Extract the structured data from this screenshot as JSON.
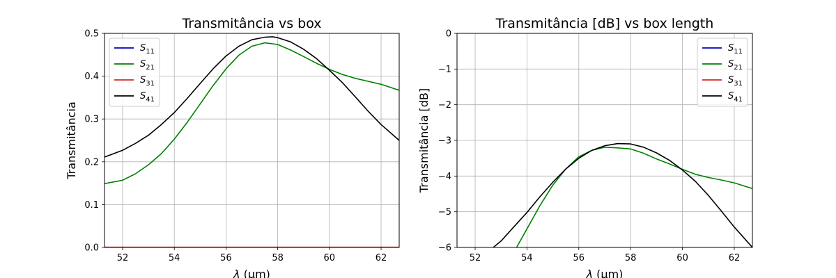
{
  "chart_data": [
    {
      "type": "line",
      "title": "Transmitância vs box",
      "xlabel_prefix": "λ",
      "xlabel_unit": "(μm)",
      "ylabel": "Transmitância",
      "xlim": [
        51.3,
        62.7
      ],
      "ylim": [
        0,
        0.5
      ],
      "xticks": [
        52,
        54,
        56,
        58,
        60,
        62
      ],
      "yticks": [
        0.0,
        0.1,
        0.2,
        0.3,
        0.4,
        0.5
      ],
      "ytick_labels": [
        "0.0",
        "0.1",
        "0.2",
        "0.3",
        "0.4",
        "0.5"
      ],
      "grid": true,
      "legend_position": "top-left",
      "series": [
        {
          "name": "S",
          "sub": "11",
          "color": "#0000bf",
          "x": [
            51.3,
            62.7
          ],
          "y": [
            0.0,
            0.0
          ]
        },
        {
          "name": "S",
          "sub": "21",
          "color": "#008000",
          "x": [
            51.3,
            52.0,
            52.5,
            53.0,
            53.5,
            54.0,
            54.5,
            55.0,
            55.5,
            56.0,
            56.5,
            57.0,
            57.5,
            58.0,
            58.5,
            59.0,
            59.5,
            60.0,
            60.5,
            61.0,
            61.5,
            62.0,
            62.7
          ],
          "y": [
            0.149,
            0.157,
            0.172,
            0.193,
            0.219,
            0.253,
            0.292,
            0.335,
            0.378,
            0.417,
            0.449,
            0.47,
            0.478,
            0.474,
            0.461,
            0.446,
            0.43,
            0.416,
            0.404,
            0.395,
            0.388,
            0.381,
            0.367
          ]
        },
        {
          "name": "S",
          "sub": "31",
          "color": "#d62728",
          "x": [
            51.3,
            62.7
          ],
          "y": [
            0.0005,
            0.0005
          ]
        },
        {
          "name": "S",
          "sub": "41",
          "color": "#000000",
          "x": [
            51.3,
            52.0,
            52.5,
            53.0,
            53.5,
            54.0,
            54.5,
            55.0,
            55.5,
            56.0,
            56.5,
            57.0,
            57.5,
            57.8,
            58.0,
            58.5,
            59.0,
            59.5,
            60.0,
            60.5,
            61.0,
            61.5,
            62.0,
            62.7
          ],
          "y": [
            0.211,
            0.227,
            0.243,
            0.262,
            0.287,
            0.315,
            0.348,
            0.383,
            0.417,
            0.447,
            0.47,
            0.485,
            0.491,
            0.492,
            0.49,
            0.48,
            0.463,
            0.441,
            0.414,
            0.385,
            0.352,
            0.318,
            0.287,
            0.25
          ]
        }
      ]
    },
    {
      "type": "line",
      "title": "Transmitância [dB] vs box length",
      "xlabel_prefix": "λ",
      "xlabel_unit": "(μm)",
      "ylabel": "Transmitância [dB]",
      "xlim": [
        51.3,
        62.7
      ],
      "ylim": [
        -6,
        0
      ],
      "xticks": [
        52,
        54,
        56,
        58,
        60,
        62
      ],
      "yticks": [
        -6,
        -5,
        -4,
        -3,
        -2,
        -1,
        0
      ],
      "ytick_labels": [
        "−6",
        "−5",
        "−4",
        "−3",
        "−2",
        "−1",
        "0"
      ],
      "grid": true,
      "legend_position": "top-right",
      "series": [
        {
          "name": "S",
          "sub": "11",
          "color": "#0000bf",
          "x": [],
          "y": []
        },
        {
          "name": "S",
          "sub": "21",
          "color": "#008000",
          "x": [
            53.6,
            54.0,
            54.5,
            55.0,
            55.5,
            56.0,
            56.5,
            57.0,
            57.5,
            58.0,
            58.5,
            59.0,
            59.5,
            60.0,
            60.5,
            61.0,
            61.5,
            62.0,
            62.7
          ],
          "y": [
            -6.0,
            -5.48,
            -4.83,
            -4.25,
            -3.8,
            -3.46,
            -3.28,
            -3.19,
            -3.21,
            -3.24,
            -3.36,
            -3.52,
            -3.66,
            -3.81,
            -3.95,
            -4.04,
            -4.11,
            -4.19,
            -4.35
          ]
        },
        {
          "name": "S",
          "sub": "31",
          "color": "#d62728",
          "x": [],
          "y": []
        },
        {
          "name": "S",
          "sub": "41",
          "color": "#000000",
          "x": [
            52.7,
            53.0,
            53.5,
            54.0,
            54.5,
            55.0,
            55.5,
            56.0,
            56.5,
            57.0,
            57.5,
            58.0,
            58.5,
            59.0,
            59.5,
            60.0,
            60.5,
            61.0,
            61.5,
            62.0,
            62.7
          ],
          "y": [
            -6.0,
            -5.82,
            -5.42,
            -5.02,
            -4.58,
            -4.17,
            -3.8,
            -3.5,
            -3.28,
            -3.15,
            -3.09,
            -3.1,
            -3.19,
            -3.35,
            -3.56,
            -3.83,
            -4.15,
            -4.54,
            -4.98,
            -5.43,
            -6.0
          ]
        }
      ]
    }
  ]
}
